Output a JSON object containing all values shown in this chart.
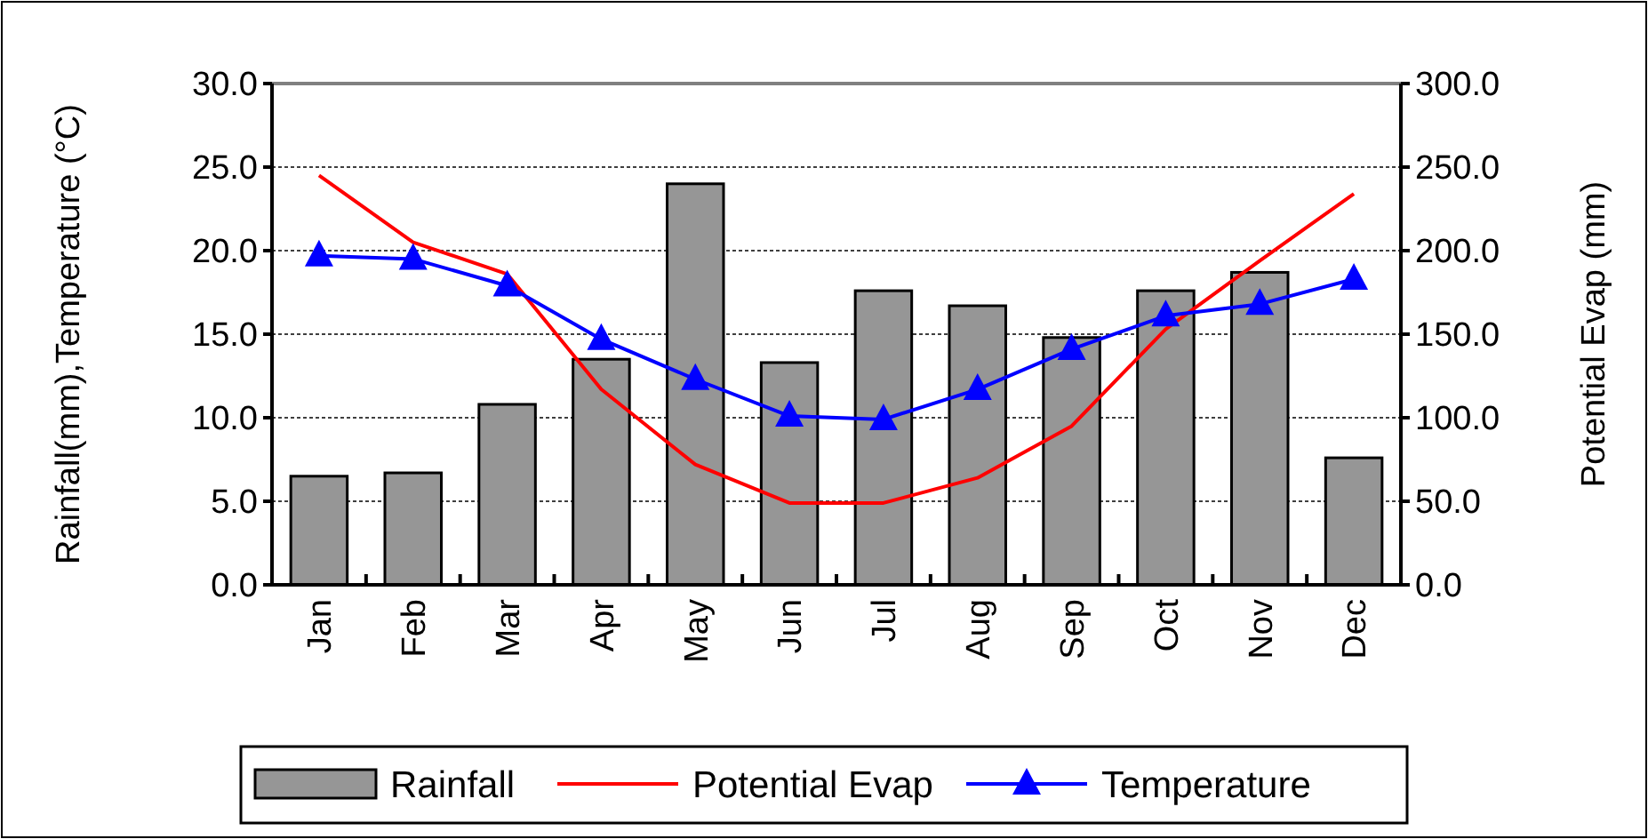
{
  "chart_data": {
    "type": "bar",
    "ylabel": "Rainfall(mm),Temperature (°C)",
    "y2label": "Potential Evap (mm)",
    "categories": [
      "Jan",
      "Feb",
      "Mar",
      "Apr",
      "May",
      "Jun",
      "Jul",
      "Aug",
      "Sep",
      "Oct",
      "Nov",
      "Dec"
    ],
    "series": [
      {
        "name": "Rainfall",
        "color": "#969696",
        "values": [
          6.5,
          6.7,
          10.8,
          13.5,
          24.0,
          13.3,
          17.6,
          16.7,
          14.8,
          17.6,
          18.7,
          7.6
        ]
      },
      {
        "name": "Potential Evap",
        "type": "line",
        "axis": "y2",
        "color": "#ff0000",
        "marker": "none",
        "values": [
          245,
          205,
          186,
          117,
          72,
          49,
          49,
          64,
          95,
          153,
          194,
          234
        ]
      },
      {
        "name": "Temperature",
        "type": "line",
        "color": "#0000ff",
        "marker": "triangle",
        "values": [
          19.7,
          19.5,
          17.9,
          14.7,
          12.3,
          10.1,
          9.9,
          11.7,
          14.1,
          16.1,
          16.8,
          18.3
        ]
      }
    ],
    "ylim": [
      0,
      30
    ],
    "yticks": [
      {
        "value": 0,
        "label": "0.0"
      },
      {
        "value": 5,
        "label": "5.0"
      },
      {
        "value": 10,
        "label": "10.0"
      },
      {
        "value": 15,
        "label": "15.0"
      },
      {
        "value": 20,
        "label": "20.0"
      },
      {
        "value": 25,
        "label": "25.0"
      },
      {
        "value": 30,
        "label": "30.0"
      }
    ],
    "y2lim": [
      0,
      300
    ],
    "y2ticks": [
      {
        "value": 0,
        "label": "0.0"
      },
      {
        "value": 50,
        "label": "50.0"
      },
      {
        "value": 100,
        "label": "100.0"
      },
      {
        "value": 150,
        "label": "150.0"
      },
      {
        "value": 200,
        "label": "200.0"
      },
      {
        "value": 250,
        "label": "250.0"
      },
      {
        "value": 300,
        "label": "300.0"
      }
    ],
    "grid": "y",
    "legend": "bottom"
  }
}
